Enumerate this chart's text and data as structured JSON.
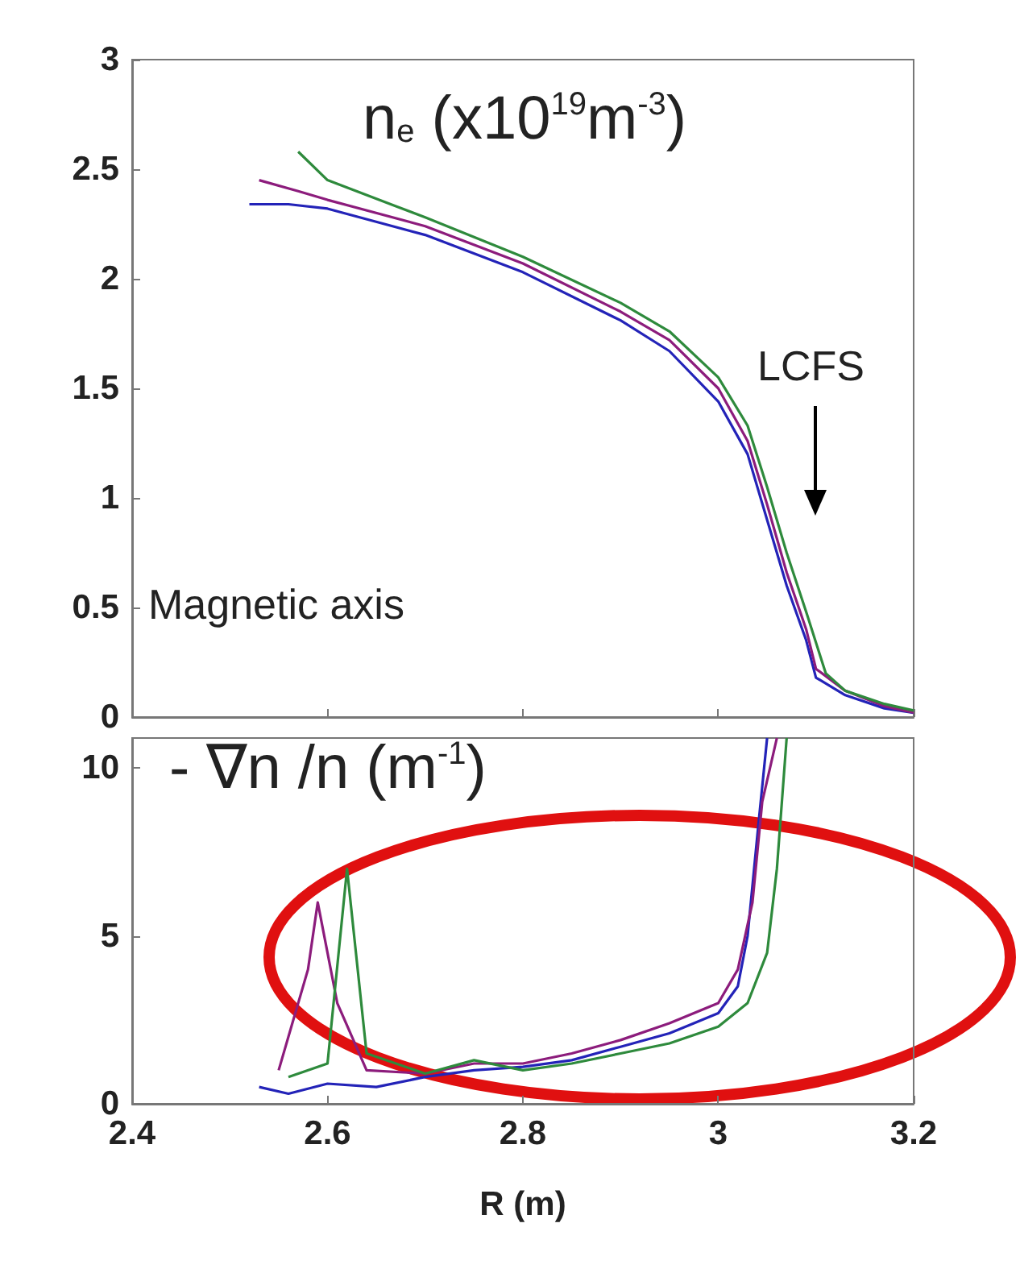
{
  "chart_data": [
    {
      "type": "line",
      "title": "n$_{e}$ (x10$^{19}$m$^{-3}$)",
      "xlim": [
        2.4,
        3.2
      ],
      "xticks": [
        2.4,
        2.6,
        2.8,
        3,
        3.2
      ],
      "ylim": [
        0,
        3
      ],
      "yticks": [
        0,
        0.5,
        1,
        1.5,
        2,
        2.5,
        3
      ],
      "tick_labels": "y",
      "grid": false,
      "series": [
        {
          "color": "#2323b8",
          "x": [
            2.52,
            2.56,
            2.6,
            2.7,
            2.8,
            2.9,
            2.95,
            3.0,
            3.03,
            3.05,
            3.07,
            3.09,
            3.1,
            3.13,
            3.17,
            3.2
          ],
          "values": [
            2.34,
            2.34,
            2.32,
            2.2,
            2.03,
            1.81,
            1.67,
            1.44,
            1.2,
            0.9,
            0.6,
            0.35,
            0.18,
            0.1,
            0.04,
            0.02
          ]
        },
        {
          "color": "#8c1c7c",
          "x": [
            2.53,
            2.57,
            2.6,
            2.7,
            2.8,
            2.9,
            2.95,
            3.0,
            3.03,
            3.05,
            3.07,
            3.09,
            3.1,
            3.13,
            3.17,
            3.2
          ],
          "values": [
            2.45,
            2.4,
            2.36,
            2.24,
            2.07,
            1.85,
            1.72,
            1.5,
            1.26,
            0.97,
            0.66,
            0.4,
            0.22,
            0.12,
            0.05,
            0.02
          ]
        },
        {
          "color": "#2e8a3c",
          "x": [
            2.57,
            2.6,
            2.7,
            2.8,
            2.9,
            2.95,
            3.0,
            3.03,
            3.05,
            3.07,
            3.09,
            3.11,
            3.13,
            3.17,
            3.2
          ],
          "values": [
            2.58,
            2.45,
            2.28,
            2.1,
            1.89,
            1.76,
            1.55,
            1.33,
            1.05,
            0.75,
            0.48,
            0.2,
            0.12,
            0.06,
            0.03
          ]
        }
      ],
      "annotations": [
        "LCFS",
        "Magnetic axis"
      ]
    },
    {
      "type": "line",
      "title": "- ∇n /n (m$^{-1}$)",
      "xlabel": "R (m)",
      "xlim": [
        2.4,
        3.2
      ],
      "xticks": [
        2.4,
        2.6,
        2.8,
        3,
        3.2
      ],
      "ylim": [
        0,
        10.9
      ],
      "yticks": [
        0,
        5,
        10
      ],
      "grid": false,
      "series": [
        {
          "color": "#2323b8",
          "x": [
            2.53,
            2.56,
            2.6,
            2.65,
            2.7,
            2.75,
            2.8,
            2.85,
            2.9,
            2.95,
            3.0,
            3.02,
            3.03,
            3.04,
            3.05
          ],
          "values": [
            0.5,
            0.3,
            0.6,
            0.5,
            0.8,
            1.0,
            1.1,
            1.3,
            1.7,
            2.1,
            2.7,
            3.5,
            5,
            8,
            10.9
          ]
        },
        {
          "color": "#8c1c7c",
          "x": [
            2.55,
            2.58,
            2.59,
            2.61,
            2.64,
            2.7,
            2.75,
            2.8,
            2.85,
            2.9,
            2.95,
            3.0,
            3.02,
            3.035,
            3.045,
            3.06
          ],
          "values": [
            1.0,
            4,
            6,
            3,
            1.0,
            0.9,
            1.2,
            1.2,
            1.5,
            1.9,
            2.4,
            3.0,
            4,
            6,
            9,
            10.9
          ]
        },
        {
          "color": "#2e8a3c",
          "x": [
            2.56,
            2.6,
            2.62,
            2.64,
            2.7,
            2.75,
            2.8,
            2.85,
            2.9,
            2.95,
            3.0,
            3.03,
            3.05,
            3.06,
            3.07
          ],
          "values": [
            0.8,
            1.2,
            7,
            1.5,
            0.9,
            1.3,
            1.0,
            1.2,
            1.5,
            1.8,
            2.3,
            3.0,
            4.5,
            7,
            10.9
          ]
        }
      ]
    }
  ]
}
